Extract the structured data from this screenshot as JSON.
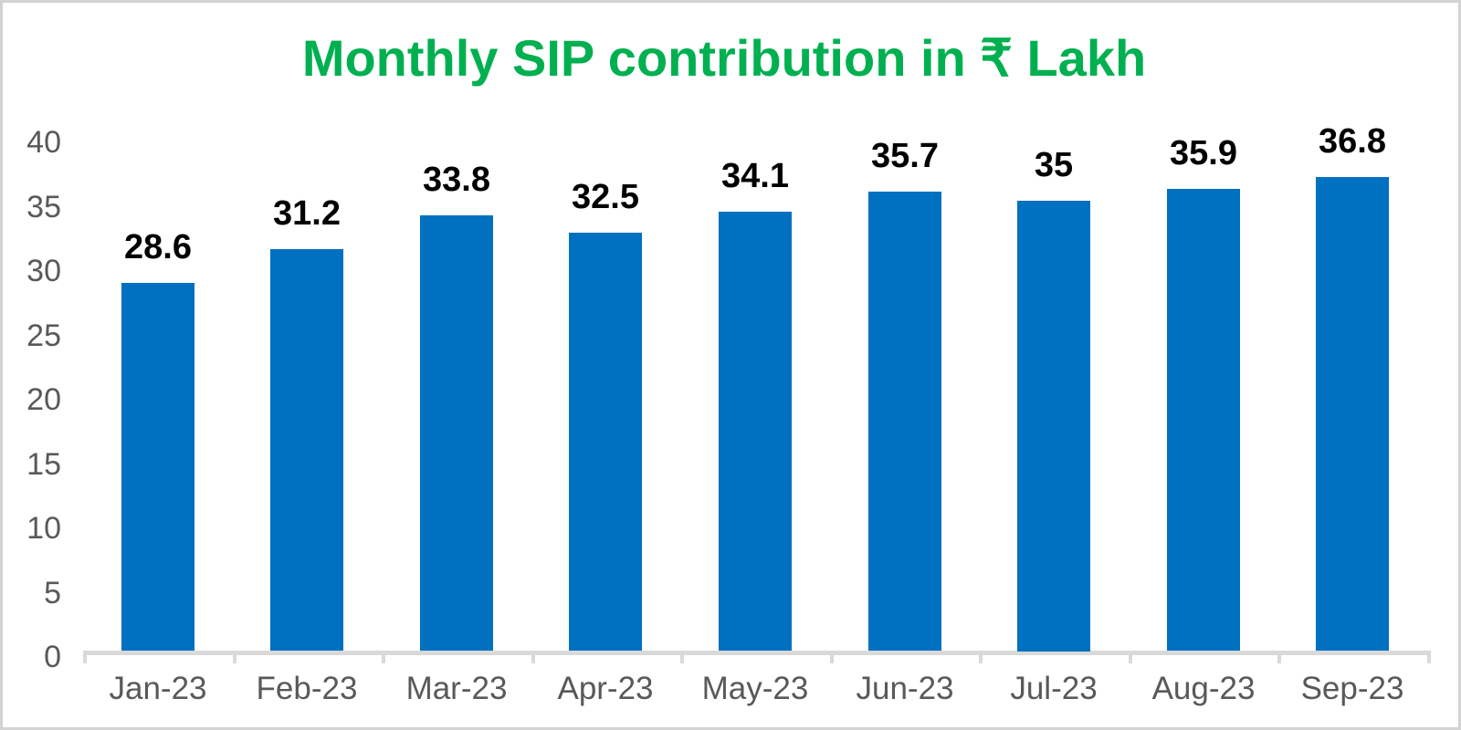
{
  "chart_data": {
    "type": "bar",
    "title": "Monthly SIP contribution in ₹ Lakh",
    "categories": [
      "Jan-23",
      "Feb-23",
      "Mar-23",
      "Apr-23",
      "May-23",
      "Jun-23",
      "Jul-23",
      "Aug-23",
      "Sep-23"
    ],
    "values": [
      28.6,
      31.2,
      33.8,
      32.5,
      34.1,
      35.7,
      35,
      35.9,
      36.8
    ],
    "data_labels": [
      "28.6",
      "31.2",
      "33.8",
      "32.5",
      "34.1",
      "35.7",
      "35",
      "35.9",
      "36.8"
    ],
    "xlabel": "",
    "ylabel": "",
    "y_ticks": [
      0,
      5,
      10,
      15,
      20,
      25,
      30,
      35,
      40
    ],
    "ylim": [
      0,
      40
    ],
    "grid": false,
    "legend": "none",
    "data_labels_position": "above-bars",
    "colors": {
      "bar": "#0070C0",
      "title": "#00B050",
      "axis_label": "#595959",
      "data_label": "#000000",
      "axis_line": "#D9D9D9",
      "background": "#FFFFFF",
      "border": "#D2D2D2"
    }
  }
}
